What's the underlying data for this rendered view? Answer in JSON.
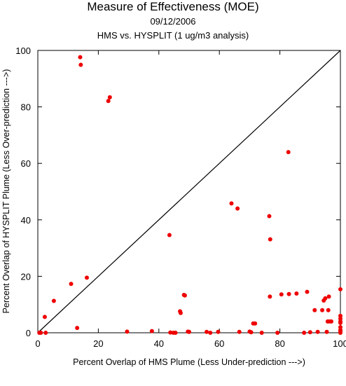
{
  "chart_data": {
    "type": "scatter",
    "title": "Measure of Effectiveness (MOE)",
    "subtitle": "09/12/2006",
    "subtitle2": "HMS vs. HYSPLIT  (1 ug/m3 analysis)",
    "xlabel": "Percent Overlap of HMS Plume (Less Under-prediction --->)",
    "ylabel": "Percent Overlap of HYSPLIT Plume (Less Over-prediction --->)",
    "xlim": [
      0,
      100
    ],
    "ylim": [
      0,
      100
    ],
    "xticks": [
      0,
      20,
      40,
      60,
      80,
      100
    ],
    "yticks": [
      0,
      20,
      40,
      60,
      80,
      100
    ],
    "reference_line": "diagonal y = x",
    "marker_color": "#ee0000",
    "points": [
      {
        "x": 0.5,
        "y": 0
      },
      {
        "x": 1.0,
        "y": 0
      },
      {
        "x": 2.3,
        "y": 5.6
      },
      {
        "x": 2.6,
        "y": 0
      },
      {
        "x": 5.3,
        "y": 11.3
      },
      {
        "x": 11.0,
        "y": 17.3
      },
      {
        "x": 13.0,
        "y": 1.7
      },
      {
        "x": 14.0,
        "y": 97.6
      },
      {
        "x": 14.2,
        "y": 94.9
      },
      {
        "x": 16.2,
        "y": 19.5
      },
      {
        "x": 23.3,
        "y": 82.1
      },
      {
        "x": 23.8,
        "y": 83.4
      },
      {
        "x": 29.5,
        "y": 0.4
      },
      {
        "x": 37.7,
        "y": 0.6
      },
      {
        "x": 43.5,
        "y": 34.6
      },
      {
        "x": 43.8,
        "y": 0.1
      },
      {
        "x": 44.8,
        "y": 0
      },
      {
        "x": 45.5,
        "y": 0
      },
      {
        "x": 47.0,
        "y": 7.6
      },
      {
        "x": 47.2,
        "y": 7.0
      },
      {
        "x": 48.3,
        "y": 13.4
      },
      {
        "x": 48.6,
        "y": 13.2
      },
      {
        "x": 49.6,
        "y": 0.4
      },
      {
        "x": 50.0,
        "y": 0.3
      },
      {
        "x": 55.8,
        "y": 0.3
      },
      {
        "x": 57.0,
        "y": 0
      },
      {
        "x": 59.6,
        "y": 0.3
      },
      {
        "x": 64.0,
        "y": 45.8
      },
      {
        "x": 66.0,
        "y": 44.0
      },
      {
        "x": 66.6,
        "y": 0.3
      },
      {
        "x": 70.0,
        "y": 0.4
      },
      {
        "x": 70.5,
        "y": 0.2
      },
      {
        "x": 71.2,
        "y": 3.3
      },
      {
        "x": 71.8,
        "y": 3.3
      },
      {
        "x": 74.0,
        "y": 0
      },
      {
        "x": 76.5,
        "y": 41.3
      },
      {
        "x": 76.7,
        "y": 12.8
      },
      {
        "x": 76.8,
        "y": 33.1
      },
      {
        "x": 79.2,
        "y": 0
      },
      {
        "x": 80.5,
        "y": 13.6
      },
      {
        "x": 82.8,
        "y": 64.0
      },
      {
        "x": 83.0,
        "y": 13.7
      },
      {
        "x": 85.5,
        "y": 13.9
      },
      {
        "x": 88.0,
        "y": 0
      },
      {
        "x": 89.0,
        "y": 14.5
      },
      {
        "x": 90.0,
        "y": 0.2
      },
      {
        "x": 91.5,
        "y": 8.0
      },
      {
        "x": 92.5,
        "y": 0.3
      },
      {
        "x": 94.0,
        "y": 8.0
      },
      {
        "x": 94.5,
        "y": 11.4
      },
      {
        "x": 95.0,
        "y": 12.2
      },
      {
        "x": 95.5,
        "y": 0.3
      },
      {
        "x": 95.8,
        "y": 4.0
      },
      {
        "x": 96.0,
        "y": 8.0
      },
      {
        "x": 96.2,
        "y": 12.8
      },
      {
        "x": 96.4,
        "y": 4.0
      },
      {
        "x": 97.0,
        "y": 4.0
      },
      {
        "x": 100.0,
        "y": 15.4
      },
      {
        "x": 100.0,
        "y": 6.0
      },
      {
        "x": 100.0,
        "y": 5.0
      },
      {
        "x": 100.0,
        "y": 4.0
      },
      {
        "x": 100.0,
        "y": 3.5
      },
      {
        "x": 100.0,
        "y": 2.0
      },
      {
        "x": 100.0,
        "y": 1.0
      },
      {
        "x": 100.0,
        "y": 0.5
      },
      {
        "x": 100.0,
        "y": 0
      }
    ]
  }
}
